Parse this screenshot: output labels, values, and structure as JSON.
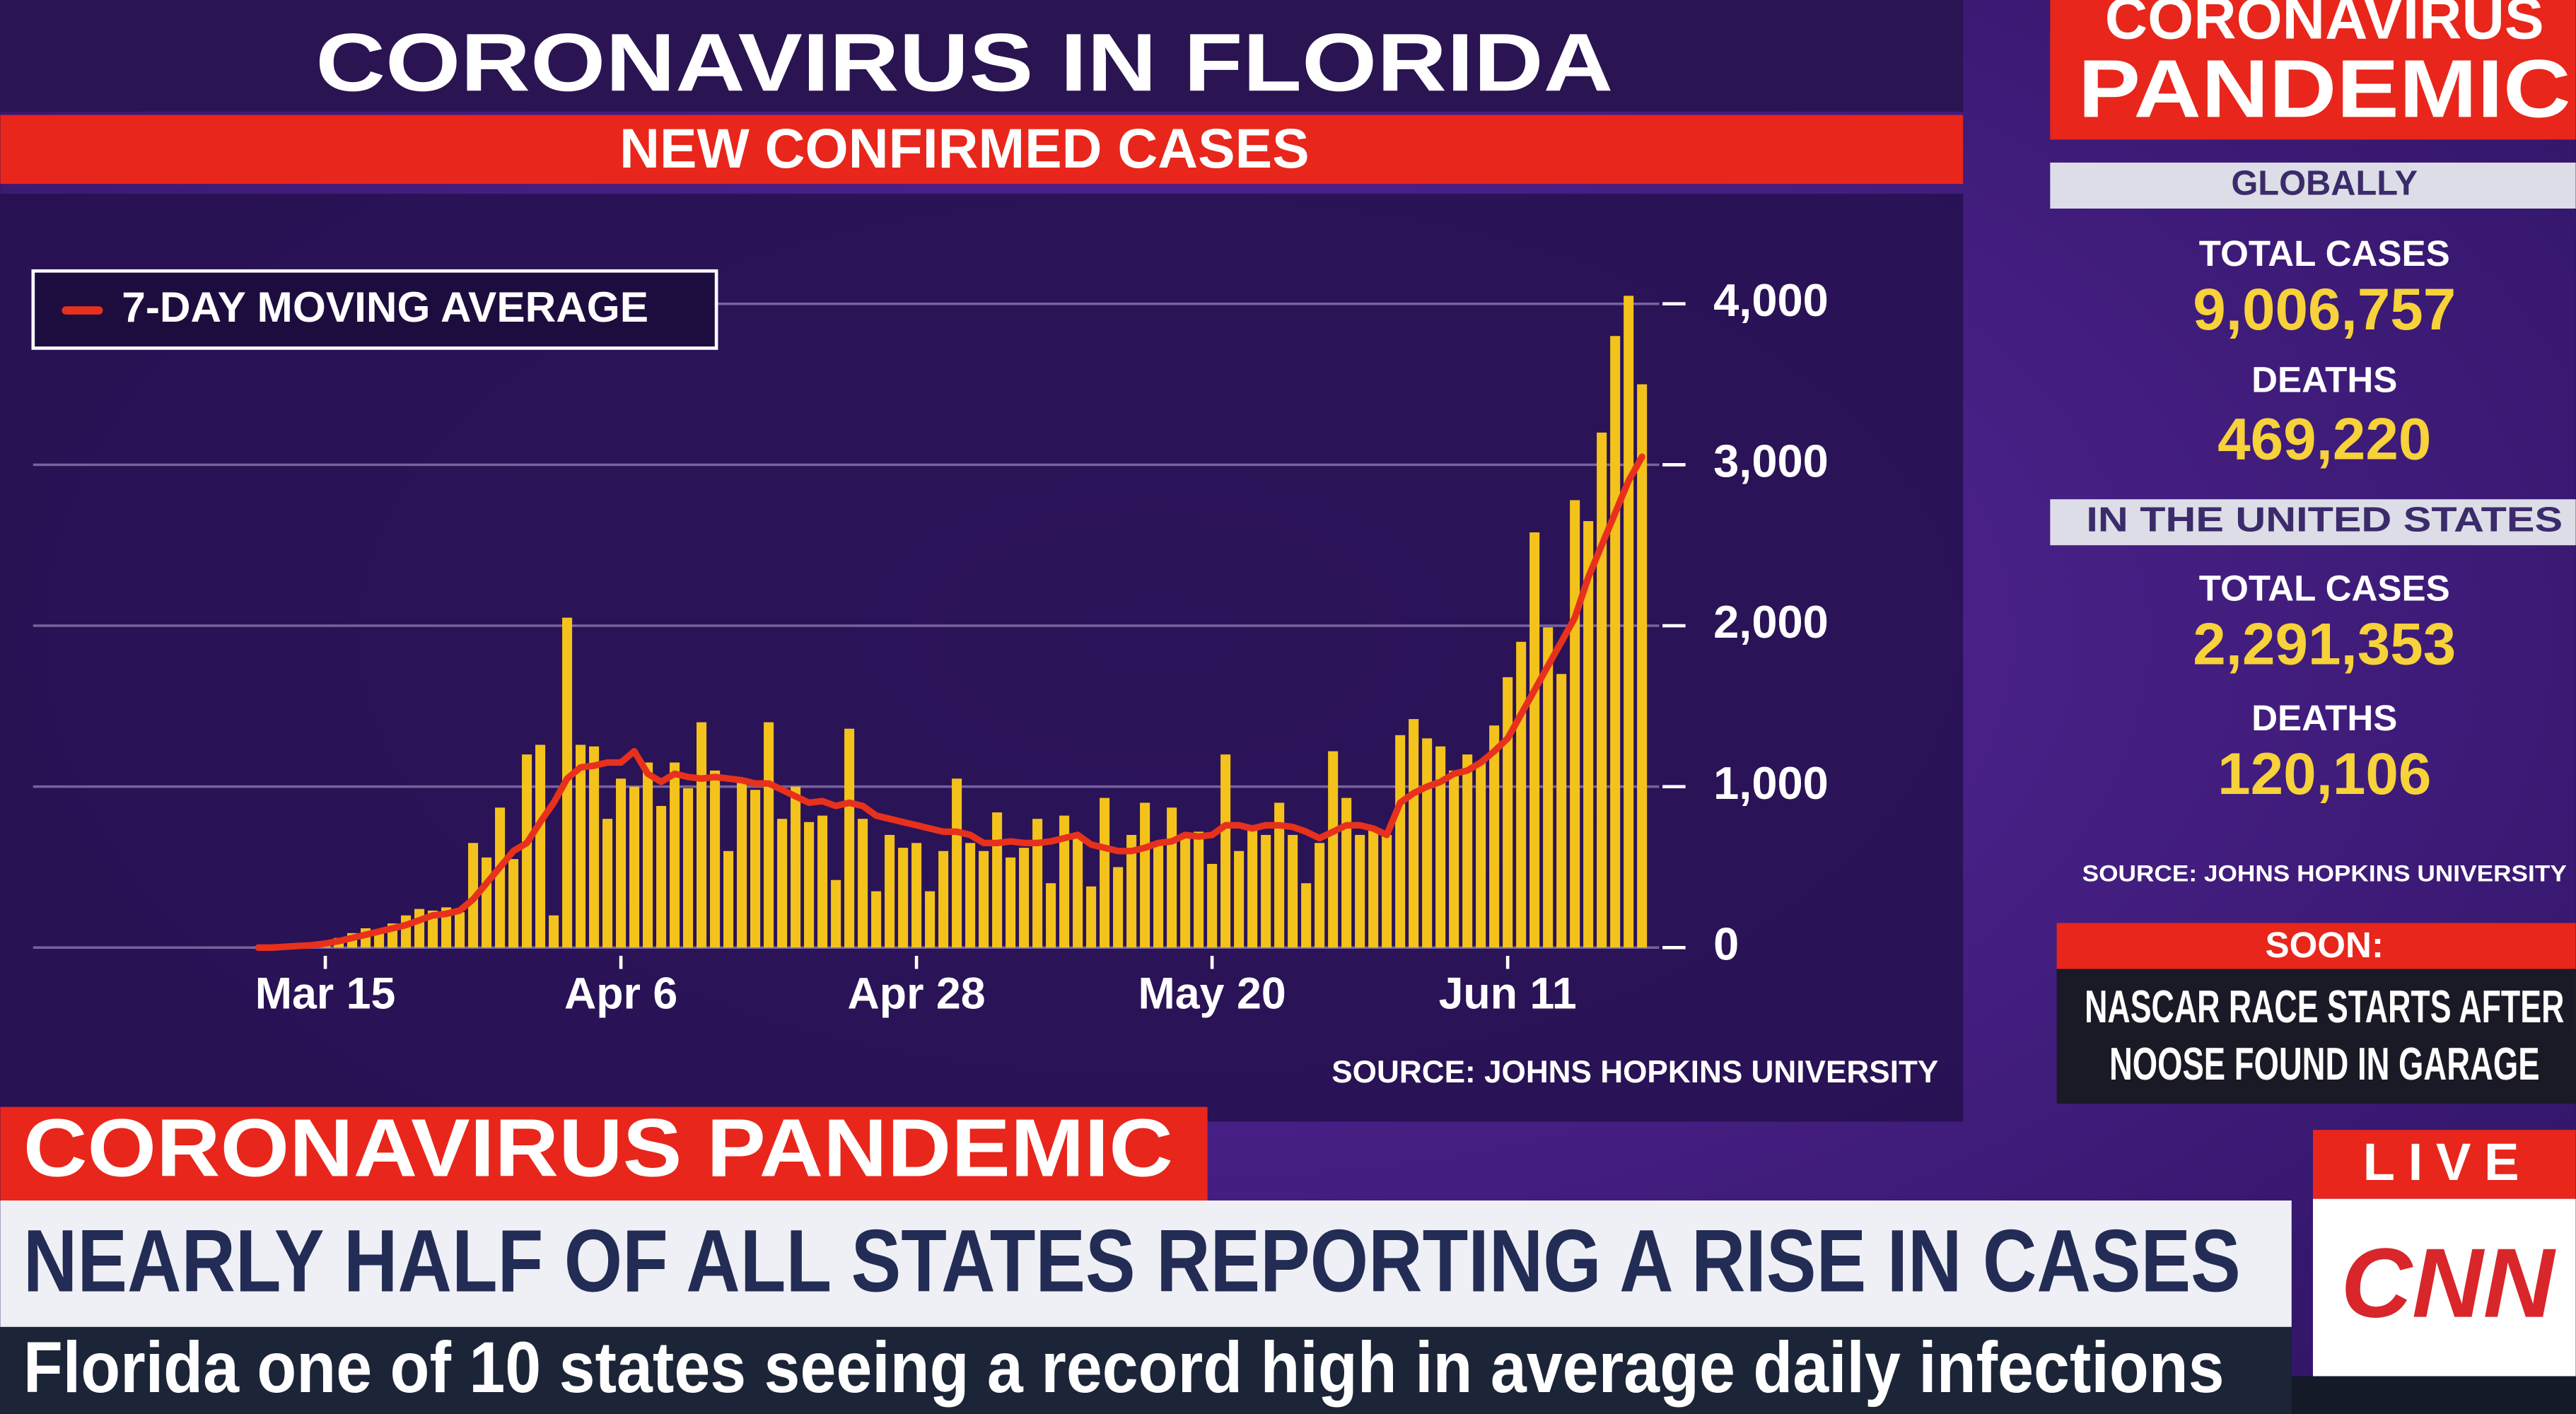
{
  "chart_data": {
    "type": "bar",
    "title": "CORONAVIRUS IN FLORIDA",
    "subtitle": "NEW CONFIRMED CASES",
    "source": "SOURCE: JOHNS HOPKINS UNIVERSITY",
    "categories": [
      null,
      null,
      null,
      null,
      null,
      "Mar 15",
      null,
      null,
      null,
      null,
      null,
      null,
      null,
      null,
      null,
      null,
      null,
      null,
      null,
      null,
      null,
      null,
      null,
      null,
      null,
      null,
      null,
      "Apr 6",
      null,
      null,
      null,
      null,
      null,
      null,
      null,
      null,
      null,
      null,
      null,
      null,
      null,
      null,
      null,
      null,
      null,
      null,
      null,
      null,
      null,
      "Apr 28",
      null,
      null,
      null,
      null,
      null,
      null,
      null,
      null,
      null,
      null,
      null,
      null,
      null,
      null,
      null,
      null,
      null,
      null,
      null,
      null,
      null,
      "May 20",
      null,
      null,
      null,
      null,
      null,
      null,
      null,
      null,
      null,
      null,
      null,
      null,
      null,
      null,
      null,
      null,
      null,
      null,
      null,
      null,
      null,
      "Jun 11",
      null,
      null,
      null,
      null,
      null,
      null,
      null,
      null,
      null,
      null
    ],
    "series": [
      {
        "type": "bar",
        "color": "#f3c31c",
        "values": [
          2,
          5,
          10,
          15,
          25,
          40,
          60,
          90,
          120,
          110,
          150,
          200,
          240,
          230,
          250,
          220,
          650,
          560,
          870,
          550,
          1200,
          1260,
          200,
          2050,
          1260,
          1250,
          800,
          1050,
          1000,
          1150,
          880,
          1150,
          990,
          1400,
          1100,
          600,
          1050,
          980,
          1400,
          800,
          1000,
          780,
          820,
          420,
          1360,
          800,
          350,
          700,
          620,
          650,
          350,
          600,
          1050,
          650,
          600,
          840,
          560,
          620,
          800,
          400,
          820,
          700,
          380,
          930,
          500,
          700,
          900,
          650,
          870,
          700,
          720,
          520,
          1200,
          600,
          750,
          700,
          900,
          700,
          400,
          650,
          1220,
          930,
          700,
          740,
          700,
          1320,
          1420,
          1300,
          1250,
          1100,
          1200,
          1150,
          1380,
          1680,
          1900,
          2580,
          1990,
          1700,
          2780,
          2650,
          3200,
          3800,
          4050,
          3500
        ]
      },
      {
        "type": "line",
        "name": "7-DAY MOVING AVERAGE",
        "color": "#e8311c",
        "values": [
          0,
          0,
          5,
          10,
          15,
          25,
          40,
          60,
          80,
          100,
          120,
          140,
          170,
          200,
          210,
          230,
          300,
          400,
          500,
          600,
          650,
          780,
          900,
          1050,
          1120,
          1130,
          1150,
          1150,
          1220,
          1080,
          1030,
          1080,
          1060,
          1050,
          1060,
          1050,
          1040,
          1020,
          1020,
          980,
          940,
          900,
          910,
          880,
          900,
          880,
          820,
          800,
          780,
          760,
          740,
          720,
          720,
          700,
          650,
          650,
          660,
          650,
          650,
          660,
          680,
          700,
          640,
          620,
          600,
          600,
          620,
          650,
          660,
          700,
          690,
          700,
          760,
          760,
          740,
          760,
          760,
          750,
          720,
          680,
          720,
          760,
          760,
          740,
          700,
          900,
          960,
          1000,
          1030,
          1080,
          1100,
          1150,
          1220,
          1300,
          1450,
          1600,
          1750,
          1900,
          2050,
          2300,
          2500,
          2700,
          2900,
          3050
        ]
      }
    ],
    "ylim": [
      0,
      4000
    ],
    "yticks": [
      0,
      {
        "value": 1000,
        "label": "1,000"
      },
      {
        "value": 2000,
        "label": "2,000"
      },
      {
        "value": 3000,
        "label": "3,000"
      },
      {
        "value": 4000,
        "label": "4,000"
      }
    ],
    "grid": true,
    "legend": "upper left"
  },
  "sidebar": {
    "title_lines": [
      "CORONAVIRUS",
      "PANDEMIC"
    ],
    "sections": [
      {
        "heading": "GLOBALLY",
        "stats": [
          {
            "label": "TOTAL CASES",
            "value": "9,006,757"
          },
          {
            "label": "DEATHS",
            "value": "469,220"
          }
        ]
      },
      {
        "heading": "IN THE UNITED STATES",
        "stats": [
          {
            "label": "TOTAL CASES",
            "value": "2,291,353"
          },
          {
            "label": "DEATHS",
            "value": "120,106"
          }
        ]
      }
    ],
    "source": "SOURCE: JOHNS HOPKINS UNIVERSITY",
    "up_next": {
      "label": "SOON:",
      "lines": [
        "NASCAR RACE STARTS AFTER",
        "NOOSE FOUND IN GARAGE"
      ]
    }
  },
  "lower_third": {
    "tag": "CORONAVIRUS PANDEMIC",
    "headline": "NEARLY HALF OF ALL STATES REPORTING A RISE IN CASES",
    "subline": "Florida one of 10 states seeing a record high in average daily infections"
  },
  "network": {
    "live": "LIVE",
    "logo": "CNN"
  }
}
